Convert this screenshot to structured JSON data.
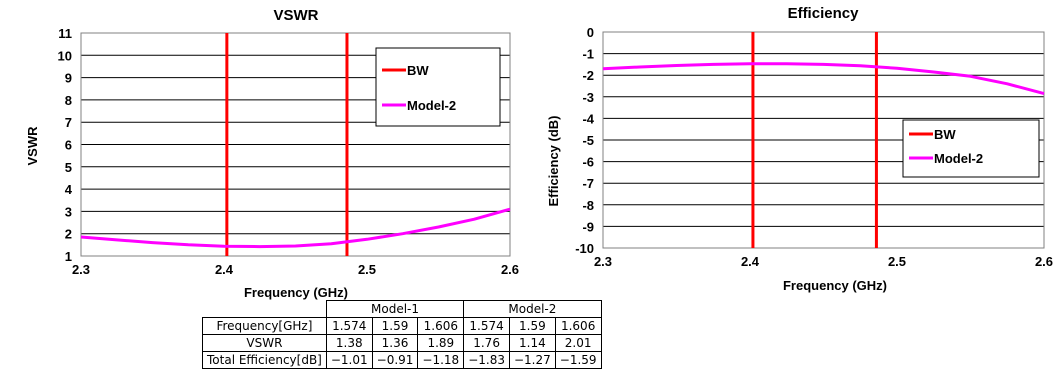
{
  "chart_data": [
    {
      "type": "line",
      "title": "VSWR",
      "xlabel": "Frequency (GHz)",
      "ylabel": "VSWR",
      "xlim": [
        2.3,
        2.6
      ],
      "ylim": [
        1,
        11
      ],
      "xticks": [
        "2.3",
        "2.4",
        "2.5",
        "2.6"
      ],
      "yticks": [
        "1",
        "2",
        "3",
        "4",
        "5",
        "6",
        "7",
        "8",
        "9",
        "10",
        "11"
      ],
      "grid": true,
      "legend_position": "top-right",
      "bw_lines": [
        2.402,
        2.486
      ],
      "series": [
        {
          "name": "BW",
          "color": "#ff0000",
          "kind": "vertical-markers"
        },
        {
          "name": "Model-2",
          "color": "#ff00ff",
          "x": [
            2.3,
            2.325,
            2.35,
            2.375,
            2.4,
            2.425,
            2.45,
            2.475,
            2.5,
            2.525,
            2.55,
            2.575,
            2.6
          ],
          "y": [
            1.85,
            1.72,
            1.6,
            1.5,
            1.44,
            1.42,
            1.45,
            1.55,
            1.75,
            2.0,
            2.3,
            2.65,
            3.1
          ]
        }
      ]
    },
    {
      "type": "line",
      "title": "Efficiency",
      "xlabel": "Frequency (GHz)",
      "ylabel": "Efficiency (dB)",
      "xlim": [
        2.3,
        2.6
      ],
      "ylim": [
        -10,
        0
      ],
      "xticks": [
        "2.3",
        "2.4",
        "2.5",
        "2.6"
      ],
      "yticks": [
        "0",
        "-1",
        "-2",
        "-3",
        "-4",
        "-5",
        "-6",
        "-7",
        "-8",
        "-9",
        "-10"
      ],
      "grid": true,
      "legend_position": "right",
      "bw_lines": [
        2.402,
        2.486
      ],
      "series": [
        {
          "name": "BW",
          "color": "#ff0000",
          "kind": "vertical-markers"
        },
        {
          "name": "Model-2",
          "color": "#ff00ff",
          "x": [
            2.3,
            2.325,
            2.35,
            2.375,
            2.4,
            2.425,
            2.45,
            2.475,
            2.5,
            2.525,
            2.55,
            2.575,
            2.6
          ],
          "y": [
            -1.7,
            -1.62,
            -1.55,
            -1.5,
            -1.47,
            -1.47,
            -1.5,
            -1.56,
            -1.68,
            -1.85,
            -2.05,
            -2.4,
            -2.85
          ]
        }
      ]
    }
  ],
  "table": {
    "groups": [
      "Model-1",
      "Model-2"
    ],
    "rows": [
      {
        "label": "Frequency[GHz]",
        "values": [
          "1.574",
          "1.59",
          "1.606",
          "1.574",
          "1.59",
          "1.606"
        ]
      },
      {
        "label": "VSWR",
        "values": [
          "1.38",
          "1.36",
          "1.89",
          "1.76",
          "1.14",
          "2.01"
        ]
      },
      {
        "label": "Total Efficiency[dB]",
        "values": [
          "−1.01",
          "−0.91",
          "−1.18",
          "−1.83",
          "−1.27",
          "−1.59"
        ]
      }
    ]
  }
}
